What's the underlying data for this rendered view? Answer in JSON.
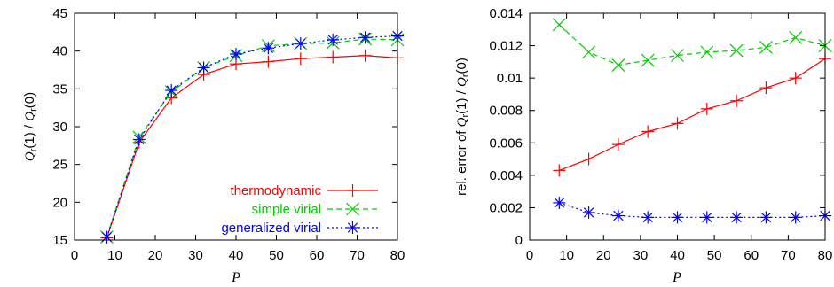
{
  "chart_data": [
    {
      "type": "line",
      "xlabel": "P",
      "ylabel": "Q_r(1) / Q_r(0)",
      "ylabel_parts": {
        "q1": "Q",
        "s1": "r",
        "m": "(1) / ",
        "q2": "Q",
        "s2": "r",
        "e": "(0)"
      },
      "xlim": [
        0,
        80
      ],
      "ylim": [
        15,
        45
      ],
      "xticks": [
        0,
        10,
        20,
        30,
        40,
        50,
        60,
        70,
        80
      ],
      "yticks": [
        15,
        20,
        25,
        30,
        35,
        40,
        45
      ],
      "grid": false,
      "legend": "bottom-right",
      "series": [
        {
          "name": "thermodynamic",
          "color": "#ff0000",
          "marker": "plus",
          "dash": "",
          "x": [
            8,
            16,
            24,
            32,
            40,
            48,
            56,
            64,
            72,
            80
          ],
          "y": [
            15.3,
            27.9,
            33.8,
            36.9,
            38.3,
            38.6,
            39.0,
            39.2,
            39.4,
            39.1
          ]
        },
        {
          "name": "simple virial",
          "color": "#00cc00",
          "marker": "x",
          "dash": "6,4",
          "x": [
            8,
            16,
            24,
            32,
            40,
            48,
            56,
            64,
            72,
            80
          ],
          "y": [
            15.4,
            28.6,
            34.6,
            37.8,
            39.4,
            40.7,
            41.0,
            41.1,
            41.6,
            41.5
          ]
        },
        {
          "name": "generalized virial",
          "color": "#0000ff",
          "marker": "star",
          "dash": "2,3",
          "x": [
            8,
            16,
            24,
            32,
            40,
            48,
            56,
            64,
            72,
            80
          ],
          "y": [
            15.4,
            28.3,
            34.8,
            37.8,
            39.6,
            40.4,
            41.0,
            41.5,
            41.8,
            42.0
          ]
        }
      ]
    },
    {
      "type": "line",
      "xlabel": "P",
      "ylabel": "rel. error of Q_r(1) / Q_r(0)",
      "ylabel_parts": {
        "pre": "rel. error of ",
        "q1": "Q",
        "s1": "r",
        "m": "(1) / ",
        "q2": "Q",
        "s2": "r",
        "e": "(0)"
      },
      "xlim": [
        0,
        80
      ],
      "ylim": [
        0,
        0.014
      ],
      "xticks": [
        0,
        10,
        20,
        30,
        40,
        50,
        60,
        70,
        80
      ],
      "yticks": [
        0,
        0.002,
        0.004,
        0.006,
        0.008,
        0.01,
        0.012,
        0.014
      ],
      "grid": false,
      "series": [
        {
          "name": "thermodynamic",
          "color": "#ff0000",
          "marker": "plus",
          "dash": "",
          "x": [
            8,
            16,
            24,
            32,
            40,
            48,
            56,
            64,
            72,
            80
          ],
          "y": [
            0.0043,
            0.005,
            0.0059,
            0.0067,
            0.0072,
            0.0081,
            0.0086,
            0.0094,
            0.01,
            0.0112
          ]
        },
        {
          "name": "simple virial",
          "color": "#00cc00",
          "marker": "x",
          "dash": "6,4",
          "x": [
            8,
            16,
            24,
            32,
            40,
            48,
            56,
            64,
            72,
            80
          ],
          "y": [
            0.0133,
            0.0116,
            0.0108,
            0.0111,
            0.0114,
            0.0116,
            0.0117,
            0.0119,
            0.0125,
            0.012
          ]
        },
        {
          "name": "generalized virial",
          "color": "#0000ff",
          "marker": "star",
          "dash": "2,3",
          "x": [
            8,
            16,
            24,
            32,
            40,
            48,
            56,
            64,
            72,
            80
          ],
          "y": [
            0.0023,
            0.0017,
            0.0015,
            0.0014,
            0.0014,
            0.0014,
            0.0014,
            0.0014,
            0.0014,
            0.0015
          ]
        }
      ]
    }
  ]
}
